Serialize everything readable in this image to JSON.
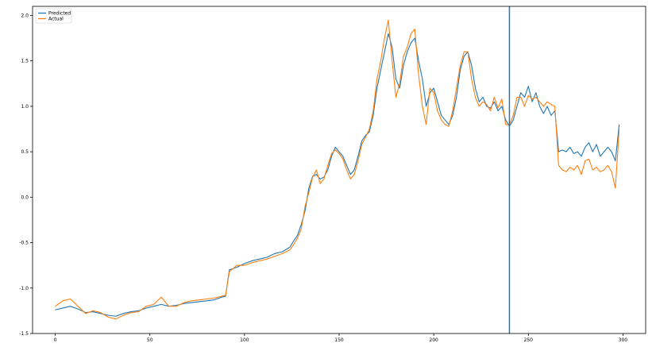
{
  "chart_data": {
    "type": "line",
    "title": "",
    "xlabel": "",
    "ylabel": "",
    "xlim": [
      -12,
      312
    ],
    "ylim": [
      -1.5,
      2.1
    ],
    "xticks": [
      0,
      50,
      100,
      150,
      200,
      250,
      300
    ],
    "yticks": [
      -1.5,
      -1.0,
      -0.5,
      0.0,
      0.5,
      1.0,
      1.5,
      2.0
    ],
    "xtick_labels": [
      "0",
      "50",
      "100",
      "150",
      "200",
      "250",
      "300"
    ],
    "ytick_labels": [
      "-1.5",
      "-1.0",
      "-0.5",
      "0.0",
      "0.5",
      "1.0",
      "1.5",
      "2.0"
    ],
    "grid": false,
    "legend_position": "top-left",
    "vertical_line": {
      "x": 240,
      "color": "#1f77b4"
    },
    "series": [
      {
        "name": "Predicted",
        "color": "#1f77b4",
        "points": [
          [
            0,
            -1.24
          ],
          [
            4,
            -1.22
          ],
          [
            8,
            -1.2
          ],
          [
            12,
            -1.23
          ],
          [
            16,
            -1.27
          ],
          [
            20,
            -1.26
          ],
          [
            24,
            -1.28
          ],
          [
            28,
            -1.3
          ],
          [
            32,
            -1.31
          ],
          [
            36,
            -1.28
          ],
          [
            40,
            -1.26
          ],
          [
            44,
            -1.25
          ],
          [
            48,
            -1.22
          ],
          [
            52,
            -1.2
          ],
          [
            56,
            -1.18
          ],
          [
            60,
            -1.2
          ],
          [
            64,
            -1.19
          ],
          [
            68,
            -1.17
          ],
          [
            72,
            -1.16
          ],
          [
            76,
            -1.15
          ],
          [
            80,
            -1.14
          ],
          [
            84,
            -1.13
          ],
          [
            88,
            -1.1
          ],
          [
            90,
            -1.09
          ],
          [
            92,
            -0.8
          ],
          [
            96,
            -0.77
          ],
          [
            100,
            -0.73
          ],
          [
            104,
            -0.7
          ],
          [
            108,
            -0.68
          ],
          [
            112,
            -0.66
          ],
          [
            116,
            -0.62
          ],
          [
            120,
            -0.6
          ],
          [
            124,
            -0.55
          ],
          [
            126,
            -0.48
          ],
          [
            128,
            -0.42
          ],
          [
            130,
            -0.3
          ],
          [
            132,
            -0.15
          ],
          [
            134,
            0.1
          ],
          [
            136,
            0.23
          ],
          [
            138,
            0.25
          ],
          [
            140,
            0.2
          ],
          [
            142,
            0.22
          ],
          [
            144,
            0.3
          ],
          [
            146,
            0.45
          ],
          [
            148,
            0.55
          ],
          [
            150,
            0.5
          ],
          [
            152,
            0.45
          ],
          [
            154,
            0.35
          ],
          [
            156,
            0.25
          ],
          [
            158,
            0.3
          ],
          [
            160,
            0.45
          ],
          [
            162,
            0.62
          ],
          [
            164,
            0.68
          ],
          [
            166,
            0.72
          ],
          [
            168,
            0.9
          ],
          [
            170,
            1.2
          ],
          [
            172,
            1.4
          ],
          [
            174,
            1.6
          ],
          [
            176,
            1.8
          ],
          [
            178,
            1.65
          ],
          [
            180,
            1.3
          ],
          [
            182,
            1.2
          ],
          [
            184,
            1.45
          ],
          [
            186,
            1.6
          ],
          [
            188,
            1.7
          ],
          [
            190,
            1.75
          ],
          [
            192,
            1.5
          ],
          [
            194,
            1.3
          ],
          [
            196,
            1.0
          ],
          [
            198,
            1.15
          ],
          [
            200,
            1.2
          ],
          [
            202,
            1.05
          ],
          [
            204,
            0.9
          ],
          [
            206,
            0.85
          ],
          [
            208,
            0.8
          ],
          [
            210,
            0.9
          ],
          [
            212,
            1.1
          ],
          [
            214,
            1.4
          ],
          [
            216,
            1.55
          ],
          [
            218,
            1.6
          ],
          [
            220,
            1.45
          ],
          [
            222,
            1.2
          ],
          [
            224,
            1.05
          ],
          [
            226,
            1.1
          ],
          [
            228,
            1.0
          ],
          [
            230,
            0.98
          ],
          [
            232,
            1.05
          ],
          [
            234,
            0.95
          ],
          [
            236,
            1.0
          ],
          [
            238,
            0.85
          ],
          [
            240,
            0.78
          ],
          [
            242,
            0.85
          ],
          [
            244,
            1.0
          ],
          [
            246,
            1.15
          ],
          [
            248,
            1.1
          ],
          [
            250,
            1.22
          ],
          [
            252,
            1.05
          ],
          [
            254,
            1.15
          ],
          [
            256,
            1.0
          ],
          [
            258,
            0.92
          ],
          [
            260,
            1.0
          ],
          [
            262,
            0.9
          ],
          [
            264,
            0.95
          ],
          [
            266,
            0.5
          ],
          [
            268,
            0.52
          ],
          [
            270,
            0.5
          ],
          [
            272,
            0.55
          ],
          [
            274,
            0.48
          ],
          [
            276,
            0.5
          ],
          [
            278,
            0.45
          ],
          [
            280,
            0.55
          ],
          [
            282,
            0.6
          ],
          [
            284,
            0.5
          ],
          [
            286,
            0.58
          ],
          [
            288,
            0.45
          ],
          [
            290,
            0.5
          ],
          [
            292,
            0.55
          ],
          [
            294,
            0.5
          ],
          [
            296,
            0.4
          ],
          [
            298,
            0.8
          ]
        ]
      },
      {
        "name": "Actual",
        "color": "#ff7f0e",
        "points": [
          [
            0,
            -1.2
          ],
          [
            4,
            -1.14
          ],
          [
            8,
            -1.12
          ],
          [
            12,
            -1.2
          ],
          [
            16,
            -1.28
          ],
          [
            20,
            -1.25
          ],
          [
            24,
            -1.27
          ],
          [
            28,
            -1.32
          ],
          [
            32,
            -1.34
          ],
          [
            36,
            -1.3
          ],
          [
            40,
            -1.27
          ],
          [
            44,
            -1.26
          ],
          [
            48,
            -1.2
          ],
          [
            52,
            -1.18
          ],
          [
            56,
            -1.1
          ],
          [
            60,
            -1.2
          ],
          [
            64,
            -1.2
          ],
          [
            68,
            -1.16
          ],
          [
            72,
            -1.14
          ],
          [
            76,
            -1.13
          ],
          [
            80,
            -1.12
          ],
          [
            84,
            -1.11
          ],
          [
            88,
            -1.09
          ],
          [
            90,
            -1.08
          ],
          [
            92,
            -0.82
          ],
          [
            96,
            -0.75
          ],
          [
            100,
            -0.75
          ],
          [
            104,
            -0.72
          ],
          [
            108,
            -0.7
          ],
          [
            112,
            -0.68
          ],
          [
            116,
            -0.65
          ],
          [
            120,
            -0.62
          ],
          [
            124,
            -0.58
          ],
          [
            126,
            -0.52
          ],
          [
            128,
            -0.45
          ],
          [
            130,
            -0.35
          ],
          [
            132,
            -0.1
          ],
          [
            134,
            0.05
          ],
          [
            136,
            0.22
          ],
          [
            138,
            0.3
          ],
          [
            140,
            0.15
          ],
          [
            142,
            0.2
          ],
          [
            144,
            0.35
          ],
          [
            146,
            0.48
          ],
          [
            148,
            0.52
          ],
          [
            150,
            0.48
          ],
          [
            152,
            0.42
          ],
          [
            154,
            0.3
          ],
          [
            156,
            0.2
          ],
          [
            158,
            0.25
          ],
          [
            160,
            0.4
          ],
          [
            162,
            0.58
          ],
          [
            164,
            0.66
          ],
          [
            166,
            0.75
          ],
          [
            168,
            0.95
          ],
          [
            170,
            1.3
          ],
          [
            172,
            1.5
          ],
          [
            174,
            1.75
          ],
          [
            176,
            1.95
          ],
          [
            178,
            1.5
          ],
          [
            180,
            1.1
          ],
          [
            182,
            1.25
          ],
          [
            184,
            1.55
          ],
          [
            186,
            1.65
          ],
          [
            188,
            1.8
          ],
          [
            190,
            1.85
          ],
          [
            192,
            1.35
          ],
          [
            194,
            1.0
          ],
          [
            196,
            0.8
          ],
          [
            198,
            1.2
          ],
          [
            200,
            1.15
          ],
          [
            202,
            0.95
          ],
          [
            204,
            0.85
          ],
          [
            206,
            0.8
          ],
          [
            208,
            0.78
          ],
          [
            210,
            0.95
          ],
          [
            212,
            1.2
          ],
          [
            214,
            1.45
          ],
          [
            216,
            1.6
          ],
          [
            218,
            1.6
          ],
          [
            220,
            1.3
          ],
          [
            222,
            1.1
          ],
          [
            224,
            1.0
          ],
          [
            226,
            1.05
          ],
          [
            228,
            1.02
          ],
          [
            230,
            0.95
          ],
          [
            232,
            1.1
          ],
          [
            234,
            0.98
          ],
          [
            236,
            1.08
          ],
          [
            238,
            0.8
          ],
          [
            240,
            0.8
          ],
          [
            242,
            0.9
          ],
          [
            244,
            1.1
          ],
          [
            246,
            1.1
          ],
          [
            248,
            1.0
          ],
          [
            250,
            1.12
          ],
          [
            252,
            1.08
          ],
          [
            254,
            1.1
          ],
          [
            256,
            1.05
          ],
          [
            258,
            1.0
          ],
          [
            260,
            1.05
          ],
          [
            262,
            1.02
          ],
          [
            264,
            1.0
          ],
          [
            266,
            0.35
          ],
          [
            268,
            0.3
          ],
          [
            270,
            0.28
          ],
          [
            272,
            0.33
          ],
          [
            274,
            0.3
          ],
          [
            276,
            0.35
          ],
          [
            278,
            0.25
          ],
          [
            280,
            0.4
          ],
          [
            282,
            0.42
          ],
          [
            284,
            0.3
          ],
          [
            286,
            0.33
          ],
          [
            288,
            0.28
          ],
          [
            290,
            0.3
          ],
          [
            292,
            0.35
          ],
          [
            294,
            0.28
          ],
          [
            296,
            0.1
          ],
          [
            298,
            0.75
          ]
        ]
      }
    ]
  }
}
